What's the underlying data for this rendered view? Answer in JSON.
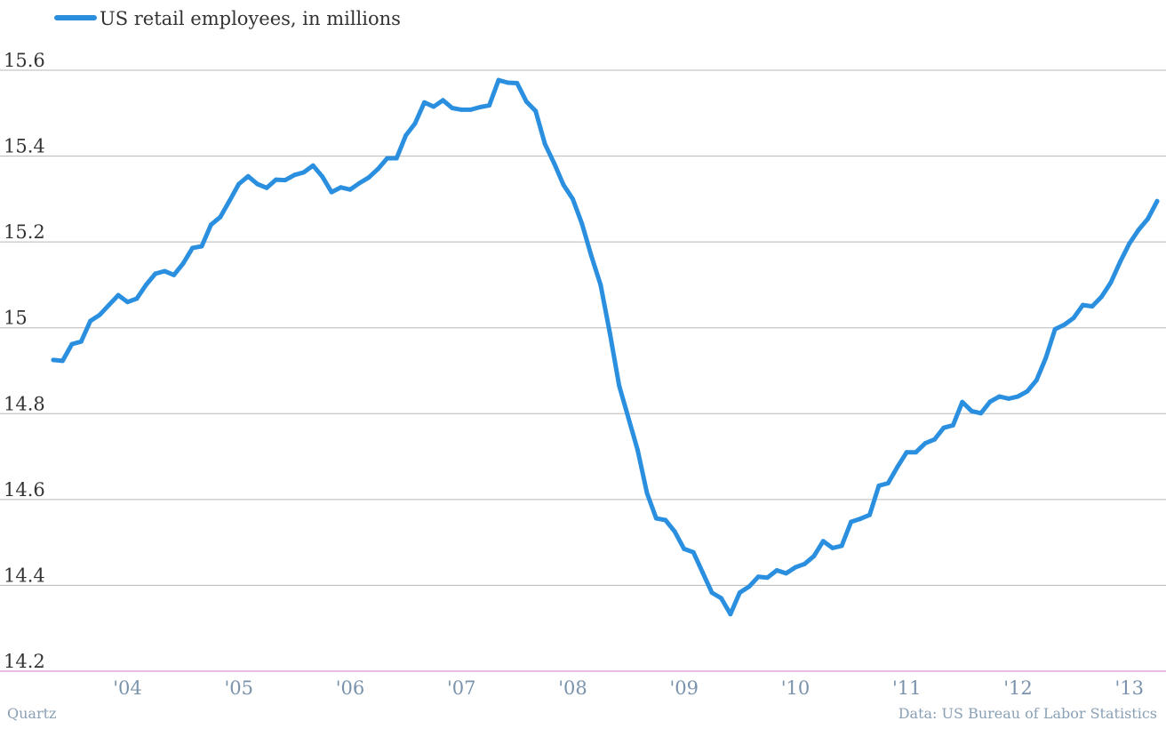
{
  "colors": {
    "series": "#2b8fe0",
    "grid": "#b8b8b8",
    "baseline": "#d27ad6",
    "text": "#333333",
    "muted": "#8aa0b5"
  },
  "footer": {
    "credit": "Quartz",
    "source": "Data: US Bureau of Labor Statistics"
  },
  "chart_data": {
    "type": "line",
    "title": "",
    "xlabel": "",
    "ylabel": "",
    "ylim": [
      14.2,
      15.6
    ],
    "yticks": [
      14.2,
      14.4,
      14.6,
      14.8,
      15.0,
      15.2,
      15.4,
      15.6
    ],
    "ytick_labels": [
      "14.2",
      "14.4",
      "14.6",
      "14.8",
      "15",
      "15.2",
      "15.4",
      "15.6"
    ],
    "xlim": [
      "2003-05",
      "2013-04"
    ],
    "xticks": [
      "2004-01",
      "2005-01",
      "2006-01",
      "2007-01",
      "2008-01",
      "2009-01",
      "2010-01",
      "2011-01",
      "2012-01",
      "2013-01"
    ],
    "xtick_labels": [
      "'04",
      "'05",
      "'06",
      "'07",
      "'08",
      "'09",
      "'10",
      "'11",
      "'12",
      "'13"
    ],
    "grid": true,
    "legend_position": "top-left",
    "series": [
      {
        "name": "US retail employees, in millions",
        "x": [
          "2003-05",
          "2003-06",
          "2003-07",
          "2003-08",
          "2003-09",
          "2003-10",
          "2003-11",
          "2003-12",
          "2004-01",
          "2004-02",
          "2004-03",
          "2004-04",
          "2004-05",
          "2004-06",
          "2004-07",
          "2004-08",
          "2004-09",
          "2004-10",
          "2004-11",
          "2004-12",
          "2005-01",
          "2005-02",
          "2005-03",
          "2005-04",
          "2005-05",
          "2005-06",
          "2005-07",
          "2005-08",
          "2005-09",
          "2005-10",
          "2005-11",
          "2005-12",
          "2006-01",
          "2006-02",
          "2006-03",
          "2006-04",
          "2006-05",
          "2006-06",
          "2006-07",
          "2006-08",
          "2006-09",
          "2006-10",
          "2006-11",
          "2006-12",
          "2007-01",
          "2007-02",
          "2007-03",
          "2007-04",
          "2007-05",
          "2007-06",
          "2007-07",
          "2007-08",
          "2007-09",
          "2007-10",
          "2007-11",
          "2007-12",
          "2008-01",
          "2008-02",
          "2008-03",
          "2008-04",
          "2008-05",
          "2008-06",
          "2008-07",
          "2008-08",
          "2008-09",
          "2008-10",
          "2008-11",
          "2008-12",
          "2009-01",
          "2009-02",
          "2009-03",
          "2009-04",
          "2009-05",
          "2009-06",
          "2009-07",
          "2009-08",
          "2009-09",
          "2009-10",
          "2009-11",
          "2009-12",
          "2010-01",
          "2010-02",
          "2010-03",
          "2010-04",
          "2010-05",
          "2010-06",
          "2010-07",
          "2010-08",
          "2010-09",
          "2010-10",
          "2010-11",
          "2010-12",
          "2011-01",
          "2011-02",
          "2011-03",
          "2011-04",
          "2011-05",
          "2011-06",
          "2011-07",
          "2011-08",
          "2011-09",
          "2011-10",
          "2011-11",
          "2011-12",
          "2012-01",
          "2012-02",
          "2012-03",
          "2012-04",
          "2012-05",
          "2012-06",
          "2012-07",
          "2012-08",
          "2012-09",
          "2012-10",
          "2012-11",
          "2012-12",
          "2013-01",
          "2013-02",
          "2013-03",
          "2013-04"
        ],
        "values": [
          14.925,
          14.923,
          14.962,
          14.968,
          15.016,
          15.03,
          15.053,
          15.076,
          15.06,
          15.068,
          15.1,
          15.126,
          15.132,
          15.123,
          15.15,
          15.186,
          15.19,
          15.24,
          15.258,
          15.296,
          15.335,
          15.353,
          15.335,
          15.326,
          15.345,
          15.344,
          15.356,
          15.362,
          15.378,
          15.352,
          15.316,
          15.327,
          15.322,
          15.337,
          15.35,
          15.37,
          15.395,
          15.395,
          15.448,
          15.476,
          15.525,
          15.515,
          15.53,
          15.512,
          15.508,
          15.508,
          15.514,
          15.518,
          15.577,
          15.571,
          15.57,
          15.527,
          15.505,
          15.428,
          15.383,
          15.333,
          15.3,
          15.242,
          15.168,
          15.1,
          14.988,
          14.865,
          14.79,
          14.715,
          14.615,
          14.556,
          14.552,
          14.525,
          14.485,
          14.477,
          14.43,
          14.383,
          14.37,
          14.333,
          14.383,
          14.397,
          14.42,
          14.418,
          14.435,
          14.428,
          14.442,
          14.45,
          14.468,
          14.503,
          14.487,
          14.492,
          14.548,
          14.555,
          14.564,
          14.632,
          14.638,
          14.676,
          14.71,
          14.71,
          14.731,
          14.74,
          14.767,
          14.773,
          14.827,
          14.806,
          14.801,
          14.828,
          14.84,
          14.835,
          14.84,
          14.852,
          14.878,
          14.93,
          14.997,
          15.007,
          15.023,
          15.053,
          15.05,
          15.072,
          15.105,
          15.153,
          15.196,
          15.228,
          15.254,
          15.295
        ]
      }
    ]
  }
}
